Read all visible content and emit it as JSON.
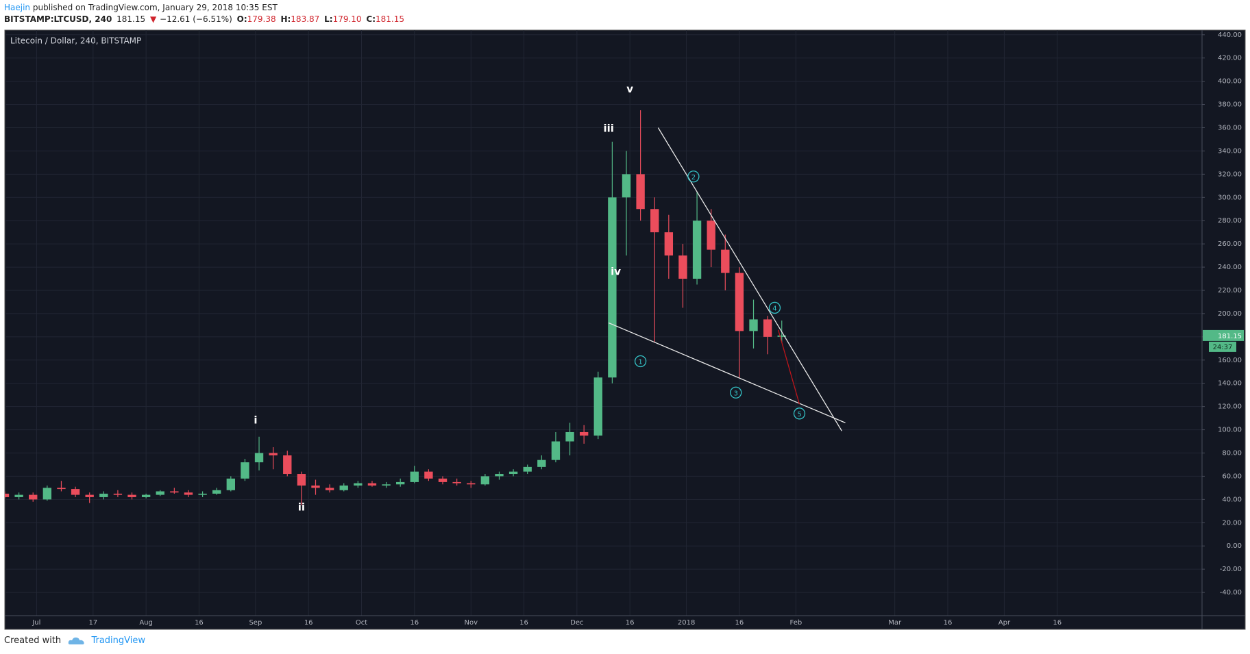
{
  "header": {
    "author": "Haejin",
    "published": "published on TradingView.com, January 29, 2018 10:35 EST",
    "symbol": "BITSTAMP:LTCUSD, 240",
    "price": "181.15",
    "arrow": "▼",
    "change": "−12.61 (−6.51%)",
    "open_label": "O:",
    "open": "179.38",
    "high_label": "H:",
    "high": "183.87",
    "low_label": "L:",
    "low": "179.10",
    "close_label": "C:",
    "close": "181.15"
  },
  "footer": {
    "created_with": "Created with",
    "brand": "TradingView"
  },
  "chart_data": {
    "type": "candlestick",
    "title": "Litecoin / Dollar, 240, BITSTAMP",
    "x": [
      "2017-06-22",
      "2017-06-26",
      "2017-06-30",
      "2017-07-04",
      "2017-07-08",
      "2017-07-12",
      "2017-07-16",
      "2017-07-20",
      "2017-07-24",
      "2017-07-28",
      "2017-08-01",
      "2017-08-05",
      "2017-08-09",
      "2017-08-13",
      "2017-08-17",
      "2017-08-21",
      "2017-08-25",
      "2017-08-29",
      "2017-09-02",
      "2017-09-06",
      "2017-09-10",
      "2017-09-14",
      "2017-09-18",
      "2017-09-22",
      "2017-09-26",
      "2017-09-30",
      "2017-10-04",
      "2017-10-08",
      "2017-10-12",
      "2017-10-16",
      "2017-10-20",
      "2017-10-24",
      "2017-10-28",
      "2017-11-01",
      "2017-11-05",
      "2017-11-09",
      "2017-11-13",
      "2017-11-17",
      "2017-11-21",
      "2017-11-25",
      "2017-11-29",
      "2017-12-03",
      "2017-12-07",
      "2017-12-11",
      "2017-12-15",
      "2017-12-19",
      "2017-12-23",
      "2017-12-27",
      "2017-12-31",
      "2018-01-04",
      "2018-01-08",
      "2018-01-12",
      "2018-01-16",
      "2018-01-20",
      "2018-01-24",
      "2018-01-28"
    ],
    "open": [
      45,
      42,
      44,
      40,
      50,
      49,
      44,
      42,
      45,
      44,
      42,
      44,
      47,
      46,
      44,
      45,
      48,
      58,
      72,
      80,
      78,
      62,
      52,
      50,
      48,
      52,
      54,
      52,
      53,
      55,
      64,
      58,
      55,
      54,
      53,
      60,
      62,
      64,
      68,
      74,
      90,
      98,
      95,
      145,
      300,
      320,
      290,
      270,
      250,
      230,
      280,
      255,
      235,
      185,
      195,
      180
    ],
    "high": [
      47,
      46,
      46,
      52,
      56,
      51,
      46,
      47,
      48,
      46,
      45,
      48,
      50,
      48,
      47,
      50,
      60,
      75,
      94,
      85,
      82,
      64,
      57,
      53,
      54,
      56,
      56,
      55,
      58,
      69,
      66,
      60,
      58,
      56,
      62,
      64,
      66,
      70,
      78,
      98,
      106,
      104,
      150,
      348,
      340,
      375,
      300,
      285,
      260,
      305,
      290,
      268,
      240,
      212,
      198,
      194
    ],
    "low": [
      41,
      40,
      38,
      39,
      47,
      42,
      37,
      40,
      42,
      40,
      41,
      43,
      45,
      42,
      42,
      44,
      47,
      56,
      65,
      66,
      60,
      35,
      44,
      46,
      47,
      50,
      51,
      50,
      51,
      54,
      56,
      53,
      52,
      50,
      52,
      57,
      60,
      62,
      66,
      72,
      78,
      88,
      92,
      140,
      250,
      280,
      175,
      230,
      205,
      225,
      240,
      220,
      145,
      170,
      165,
      175
    ],
    "close": [
      42,
      44,
      40,
      50,
      49,
      44,
      42,
      45,
      44,
      42,
      44,
      47,
      46,
      44,
      45,
      48,
      58,
      72,
      80,
      78,
      62,
      52,
      50,
      48,
      52,
      54,
      52,
      53,
      55,
      64,
      58,
      55,
      54,
      53,
      60,
      62,
      64,
      68,
      74,
      90,
      98,
      95,
      145,
      300,
      320,
      290,
      270,
      250,
      230,
      280,
      255,
      235,
      185,
      195,
      180,
      181.15
    ],
    "up_color": "#53b987",
    "down_color": "#eb4d5c",
    "last_price": 181.15,
    "countdown": "24:37",
    "xlim": [
      "2017-06-22",
      "2018-05-27"
    ],
    "ylim": [
      -60,
      444
    ],
    "xticks": [
      {
        "value": "2017-07-01",
        "label": "Jul"
      },
      {
        "value": "2017-07-17",
        "label": "17"
      },
      {
        "value": "2017-08-01",
        "label": "Aug"
      },
      {
        "value": "2017-08-16",
        "label": "16"
      },
      {
        "value": "2017-09-01",
        "label": "Sep"
      },
      {
        "value": "2017-09-16",
        "label": "16"
      },
      {
        "value": "2017-10-01",
        "label": "Oct"
      },
      {
        "value": "2017-10-16",
        "label": "16"
      },
      {
        "value": "2017-11-01",
        "label": "Nov"
      },
      {
        "value": "2017-11-16",
        "label": "16"
      },
      {
        "value": "2017-12-01",
        "label": "Dec"
      },
      {
        "value": "2017-12-16",
        "label": "16"
      },
      {
        "value": "2018-01-01",
        "label": "2018"
      },
      {
        "value": "2018-01-16",
        "label": "16"
      },
      {
        "value": "2018-02-01",
        "label": "Feb"
      },
      {
        "value": "2018-03-01",
        "label": "Mar"
      },
      {
        "value": "2018-03-16",
        "label": "16"
      },
      {
        "value": "2018-04-01",
        "label": "Apr"
      },
      {
        "value": "2018-04-16",
        "label": "16"
      }
    ],
    "yticks": [
      {
        "value": -40,
        "label": "-40.00"
      },
      {
        "value": -20,
        "label": "-20.00"
      },
      {
        "value": 0,
        "label": "0.00"
      },
      {
        "value": 20,
        "label": "20.00"
      },
      {
        "value": 40,
        "label": "40.00"
      },
      {
        "value": 60,
        "label": "60.00"
      },
      {
        "value": 80,
        "label": "80.00"
      },
      {
        "value": 100,
        "label": "100.00"
      },
      {
        "value": 120,
        "label": "120.00"
      },
      {
        "value": 140,
        "label": "140.00"
      },
      {
        "value": 160,
        "label": "160.00"
      },
      {
        "value": 180,
        "label": "180.00"
      },
      {
        "value": 200,
        "label": "200.00"
      },
      {
        "value": 220,
        "label": "220.00"
      },
      {
        "value": 240,
        "label": "240.00"
      },
      {
        "value": 260,
        "label": "260.00"
      },
      {
        "value": 280,
        "label": "280.00"
      },
      {
        "value": 300,
        "label": "300.00"
      },
      {
        "value": 320,
        "label": "320.00"
      },
      {
        "value": 340,
        "label": "340.00"
      },
      {
        "value": 360,
        "label": "360.00"
      },
      {
        "value": 380,
        "label": "380.00"
      },
      {
        "value": 400,
        "label": "400.00"
      },
      {
        "value": 420,
        "label": "420.00"
      },
      {
        "value": 440,
        "label": "440.00"
      }
    ],
    "grid": true,
    "annotations": [
      {
        "text": "i",
        "x": "2017-09-01",
        "y": 108,
        "style": "wave"
      },
      {
        "text": "ii",
        "x": "2017-09-14",
        "y": 33,
        "style": "wave"
      },
      {
        "text": "iii",
        "x": "2017-12-10",
        "y": 359,
        "style": "wave"
      },
      {
        "text": "iv",
        "x": "2017-12-12",
        "y": 236,
        "style": "wave"
      },
      {
        "text": "v",
        "x": "2017-12-16",
        "y": 393,
        "style": "wave"
      },
      {
        "text": "1",
        "x": "2017-12-19",
        "y": 159,
        "style": "circle"
      },
      {
        "text": "2",
        "x": "2018-01-03",
        "y": 318,
        "style": "circle"
      },
      {
        "text": "3",
        "x": "2018-01-15",
        "y": 132,
        "style": "circle"
      },
      {
        "text": "4",
        "x": "2018-01-26",
        "y": 205,
        "style": "circle"
      },
      {
        "text": "5",
        "x": "2018-02-02",
        "y": 114,
        "style": "circle"
      }
    ],
    "lines": [
      {
        "x": [
          "2017-12-24",
          "2018-02-14"
        ],
        "y": [
          360,
          99
        ],
        "color": "#e8e8e8"
      },
      {
        "x": [
          "2017-12-10",
          "2018-02-15"
        ],
        "y": [
          192,
          106
        ],
        "color": "#e8e8e8"
      },
      {
        "x": [
          "2018-01-27",
          "2018-02-02"
        ],
        "y": [
          186,
          122
        ],
        "color": "#c0151b"
      }
    ]
  }
}
